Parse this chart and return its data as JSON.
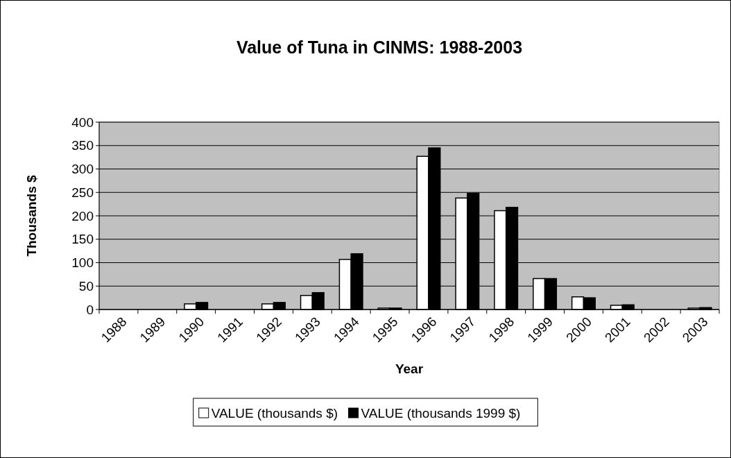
{
  "chart_data": {
    "type": "bar",
    "title": "Value of Tuna in CINMS:  1988-2003",
    "xlabel": "Year",
    "ylabel": "Thousands $",
    "categories": [
      "1988",
      "1989",
      "1990",
      "1991",
      "1992",
      "1993",
      "1994",
      "1995",
      "1996",
      "1997",
      "1998",
      "1999",
      "2000",
      "2001",
      "2002",
      "2003"
    ],
    "series": [
      {
        "name": "VALUE (thousands $)",
        "color": "#ffffff",
        "values": [
          0,
          0,
          12,
          0,
          12,
          30,
          107,
          3,
          327,
          238,
          211,
          66,
          27,
          9,
          0,
          3
        ]
      },
      {
        "name": "VALUE (thousands 1999 $)",
        "color": "#000000",
        "values": [
          0,
          0,
          15,
          0,
          15,
          36,
          119,
          3,
          345,
          248,
          218,
          66,
          25,
          10,
          0,
          4
        ]
      }
    ],
    "ylim": [
      0,
      400
    ],
    "yticks": [
      0,
      50,
      100,
      150,
      200,
      250,
      300,
      350,
      400
    ],
    "grid": "y",
    "legend": "bottom"
  }
}
